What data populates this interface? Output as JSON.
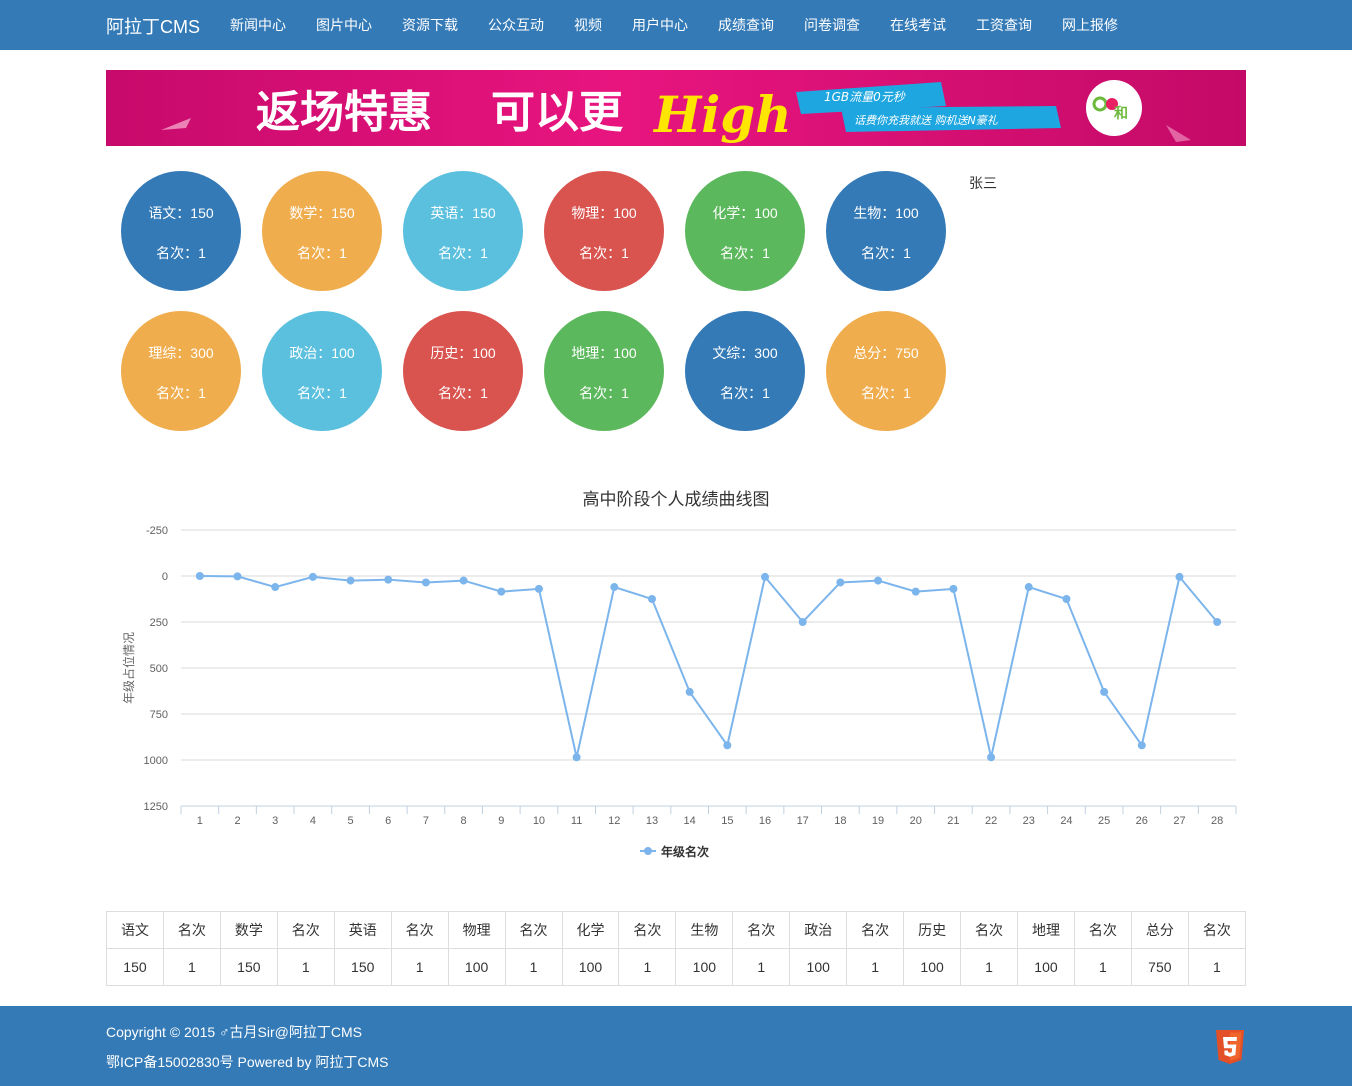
{
  "navbar": {
    "brand": "阿拉丁CMS",
    "items": [
      "新闻中心",
      "图片中心",
      "资源下载",
      "公众互动",
      "视频",
      "用户中心",
      "成绩查询",
      "问卷调查",
      "在线考试",
      "工资查询",
      "网上报修"
    ]
  },
  "banner": {
    "headline": "返场特惠",
    "headline2": "可以更",
    "high": "High",
    "ribbon1": "1GB流量0元秒",
    "ribbon2": "话费你充我就送   购机送N豪礼",
    "logo_text": "和"
  },
  "student": {
    "name": "张三"
  },
  "rank_label": "名次：",
  "circles": [
    {
      "subject": "语文：150",
      "rank": "名次：1",
      "color": "#337ab7"
    },
    {
      "subject": "数学：150",
      "rank": "名次：1",
      "color": "#f0ad4e"
    },
    {
      "subject": "英语：150",
      "rank": "名次：1",
      "color": "#5bc0de"
    },
    {
      "subject": "物理：100",
      "rank": "名次：1",
      "color": "#d9534f"
    },
    {
      "subject": "化学：100",
      "rank": "名次：1",
      "color": "#5cb85c"
    },
    {
      "subject": "生物：100",
      "rank": "名次：1",
      "color": "#337ab7"
    },
    {
      "subject": "理综：300",
      "rank": "名次：1",
      "color": "#f0ad4e"
    },
    {
      "subject": "政治：100",
      "rank": "名次：1",
      "color": "#5bc0de"
    },
    {
      "subject": "历史：100",
      "rank": "名次：1",
      "color": "#d9534f"
    },
    {
      "subject": "地理：100",
      "rank": "名次：1",
      "color": "#5cb85c"
    },
    {
      "subject": "文综：300",
      "rank": "名次：1",
      "color": "#337ab7"
    },
    {
      "subject": "总分：750",
      "rank": "名次：1",
      "color": "#f0ad4e"
    }
  ],
  "chart_data": {
    "type": "line",
    "title": "高中阶段个人成绩曲线图",
    "ylabel": "年级占位情况",
    "xlabel": "",
    "y_reversed": true,
    "ylim": [
      -250,
      1250
    ],
    "yticks": [
      -250,
      0,
      250,
      500,
      750,
      1000,
      1250
    ],
    "grid": true,
    "legend_position": "bottom",
    "categories": [
      "1",
      "2",
      "3",
      "4",
      "5",
      "6",
      "7",
      "8",
      "9",
      "10",
      "11",
      "12",
      "13",
      "14",
      "15",
      "16",
      "17",
      "18",
      "19",
      "20",
      "21",
      "22",
      "23",
      "24",
      "25",
      "26",
      "27",
      "28"
    ],
    "series": [
      {
        "name": "年级名次",
        "color": "#7cb5ec",
        "values": [
          0,
          2,
          60,
          5,
          25,
          20,
          35,
          25,
          85,
          70,
          985,
          60,
          125,
          630,
          920,
          5,
          250,
          35,
          25,
          85,
          70,
          985,
          60,
          125,
          630,
          920,
          5,
          250
        ]
      }
    ]
  },
  "table": {
    "headers": [
      "语文",
      "名次",
      "数学",
      "名次",
      "英语",
      "名次",
      "物理",
      "名次",
      "化学",
      "名次",
      "生物",
      "名次",
      "政治",
      "名次",
      "历史",
      "名次",
      "地理",
      "名次",
      "总分",
      "名次"
    ],
    "values": [
      "150",
      "1",
      "150",
      "1",
      "150",
      "1",
      "100",
      "1",
      "100",
      "1",
      "100",
      "1",
      "100",
      "1",
      "100",
      "1",
      "100",
      "1",
      "750",
      "1"
    ]
  },
  "footer": {
    "copyright": "Copyright © 2015 ♂古月Sir@阿拉丁CMS",
    "icp": "鄂ICP备15002830号 Powered by 阿拉丁CMS"
  }
}
